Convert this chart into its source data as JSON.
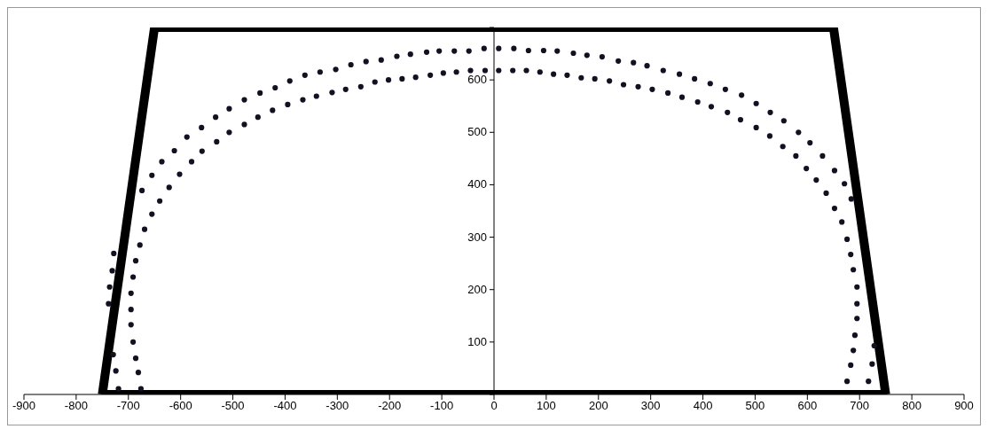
{
  "chart_data": {
    "type": "scatter",
    "xlim": [
      -900,
      900
    ],
    "ylim": [
      0,
      700
    ],
    "xticks": [
      -900,
      -800,
      -700,
      -600,
      -500,
      -400,
      -300,
      -200,
      -100,
      0,
      100,
      200,
      300,
      400,
      500,
      600,
      700,
      800,
      900
    ],
    "yticks": [
      {
        "value": 0,
        "label": null
      },
      100,
      200,
      300,
      400,
      500,
      600,
      {
        "value": 700,
        "label": null
      }
    ],
    "grid": false,
    "legend": false,
    "marker": "circle",
    "line_style": "solid",
    "series": [
      {
        "type": "line",
        "marker": "none",
        "color": "#000000",
        "x": [
          -750,
          -650,
          650,
          750
        ],
        "values": [
          0,
          700,
          700,
          0
        ]
      },
      {
        "type": "line",
        "marker": "none",
        "color": "#000000",
        "x": [
          -750,
          750
        ],
        "values": [
          0,
          0
        ]
      },
      {
        "color": "#111122",
        "x": [
          -719,
          -724,
          -729,
          -738,
          -736,
          -731,
          -728,
          -674,
          -655,
          -636,
          -612,
          -588,
          -560,
          -533,
          -507,
          -478,
          -448,
          -419,
          -391,
          -362,
          -333,
          -303,
          -274,
          -245,
          -216,
          -186,
          -160,
          -129,
          -105,
          -76,
          -48,
          -19,
          9,
          38,
          66,
          95,
          121,
          152,
          178,
          207,
          238,
          267,
          293,
          324,
          355,
          384,
          414,
          443,
          474,
          502,
          529,
          555,
          583,
          605,
          629,
          652,
          671,
          684,
          728,
          724,
          717
        ],
        "values": [
          11,
          45,
          76,
          173,
          205,
          236,
          269,
          389,
          418,
          444,
          465,
          491,
          509,
          529,
          545,
          562,
          575,
          585,
          598,
          609,
          615,
          620,
          629,
          635,
          638,
          645,
          649,
          653,
          655,
          655,
          655,
          660,
          660,
          660,
          656,
          656,
          655,
          651,
          647,
          644,
          636,
          633,
          627,
          618,
          611,
          602,
          593,
          582,
          571,
          555,
          538,
          522,
          500,
          480,
          455,
          427,
          402,
          373,
          93,
          58,
          25
        ]
      },
      {
        "color": "#111122",
        "x": [
          -676,
          -681,
          -686,
          -691,
          -695,
          -695,
          -695,
          -691,
          -686,
          -678,
          -669,
          -655,
          -640,
          -622,
          -602,
          -579,
          -559,
          -531,
          -507,
          -478,
          -452,
          -424,
          -395,
          -366,
          -340,
          -310,
          -284,
          -255,
          -228,
          -202,
          -176,
          -150,
          -122,
          -97,
          -72,
          -45,
          -17,
          9,
          36,
          62,
          88,
          114,
          140,
          167,
          193,
          221,
          248,
          276,
          303,
          333,
          360,
          390,
          416,
          447,
          472,
          502,
          528,
          553,
          578,
          598,
          617,
          636,
          652,
          666,
          676,
          683,
          688,
          695,
          695,
          695,
          691,
          688,
          683,
          676
        ],
        "values": [
          11,
          42,
          69,
          100,
          133,
          162,
          193,
          224,
          255,
          285,
          315,
          344,
          369,
          395,
          420,
          444,
          464,
          482,
          500,
          515,
          529,
          542,
          553,
          562,
          569,
          576,
          582,
          587,
          596,
          600,
          602,
          605,
          609,
          613,
          615,
          618,
          618,
          618,
          618,
          618,
          615,
          611,
          609,
          604,
          602,
          598,
          591,
          587,
          582,
          575,
          567,
          558,
          549,
          538,
          524,
          509,
          493,
          473,
          455,
          431,
          409,
          384,
          355,
          329,
          296,
          267,
          238,
          205,
          173,
          145,
          113,
          84,
          56,
          25
        ]
      }
    ]
  }
}
